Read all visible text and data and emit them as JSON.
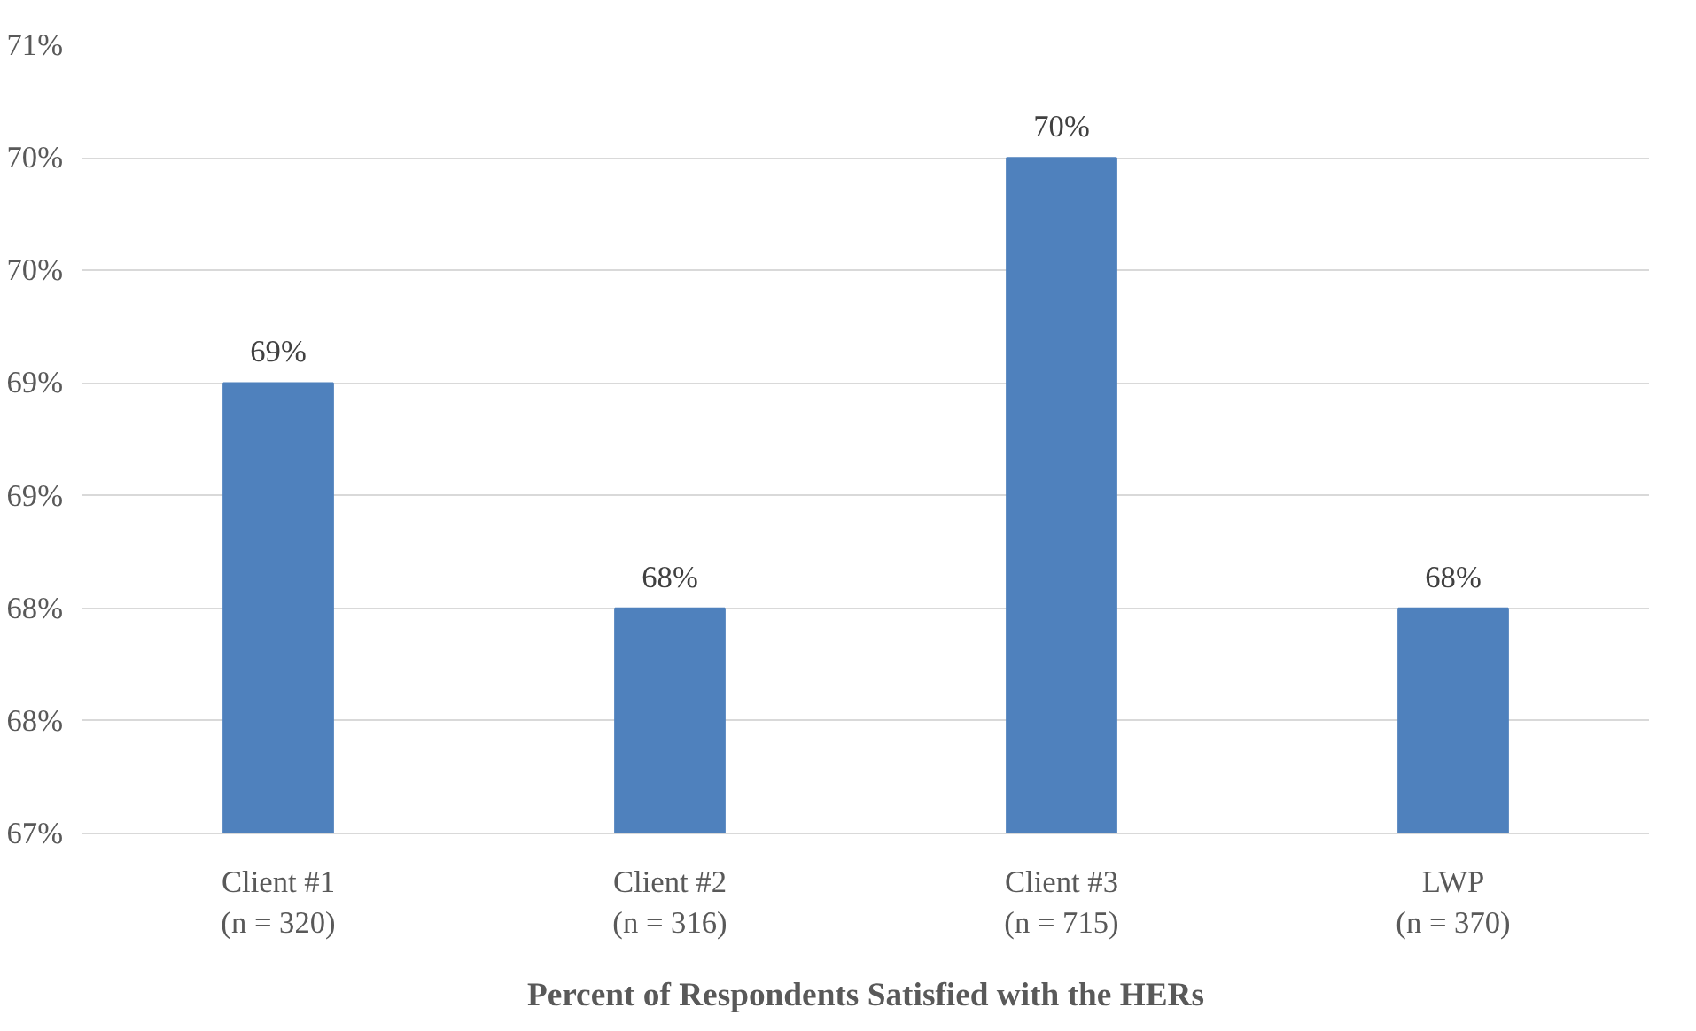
{
  "chart_data": {
    "type": "bar",
    "xlabel": "Percent of Respondents Satisfied with the HERs",
    "categories": [
      "Client #1\n(n = 320)",
      "Client #2\n(n = 316)",
      "Client #3\n(n = 715)",
      "LWP\n(n = 370)"
    ],
    "values": [
      69,
      68,
      70,
      68
    ],
    "color": "#4f81bd",
    "value_labels": [
      "69%",
      "68%",
      "70%",
      "68%"
    ],
    "ylim": [
      67,
      70.5
    ],
    "yticks": [
      {
        "value": 67,
        "label": "67%"
      },
      {
        "value": 67.5,
        "label": "68%"
      },
      {
        "value": 68,
        "label": "68%"
      },
      {
        "value": 68.5,
        "label": "69%"
      },
      {
        "value": 69,
        "label": "69%"
      },
      {
        "value": 69.5,
        "label": "70%"
      },
      {
        "value": 70,
        "label": "70%"
      },
      {
        "value": 70.5,
        "label": "71%"
      }
    ],
    "grid": "y"
  }
}
